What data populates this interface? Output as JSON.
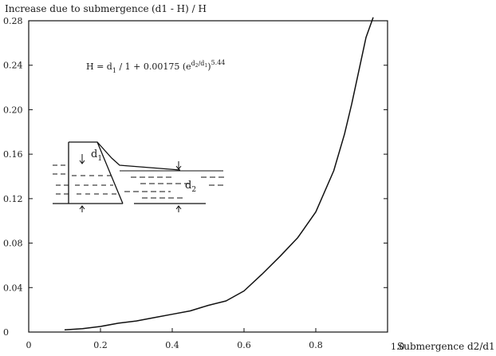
{
  "chart_data": {
    "type": "line",
    "title": "Increase due to submergence",
    "ylabel": "(d1 - H) / H",
    "xlabel": "Submergence d2/d1",
    "equation": {
      "lhs": "H = d",
      "mid": " / 1 + 0.00175 (e",
      "exp_pre": "d",
      "exp_sub_a": "2",
      "exp_slash": "/d",
      "exp_sub_b": "1",
      "close": ")",
      "power": "5.44",
      "sub1": "1"
    },
    "xlim": [
      0,
      1.0
    ],
    "ylim": [
      0,
      0.28
    ],
    "x_ticks": [
      {
        "v": 0,
        "label": "0"
      },
      {
        "v": 0.2,
        "label": "0.2"
      },
      {
        "v": 0.4,
        "label": "0.4"
      },
      {
        "v": 0.6,
        "label": "0.6"
      },
      {
        "v": 0.8,
        "label": "0.8"
      },
      {
        "v": 1.0,
        "label": "1.0"
      }
    ],
    "y_ticks": [
      {
        "v": 0,
        "label": "0"
      },
      {
        "v": 0.04,
        "label": "0.04"
      },
      {
        "v": 0.08,
        "label": "0.08"
      },
      {
        "v": 0.12,
        "label": "0.12"
      },
      {
        "v": 0.16,
        "label": "0.16"
      },
      {
        "v": 0.2,
        "label": "0.20"
      },
      {
        "v": 0.24,
        "label": "0.24"
      },
      {
        "v": 0.28,
        "label": "0.28"
      }
    ],
    "series": [
      {
        "x": [
          0.1,
          0.15,
          0.2,
          0.25,
          0.3,
          0.35,
          0.4,
          0.45,
          0.5,
          0.55,
          0.6,
          0.65,
          0.7,
          0.75,
          0.8,
          0.85,
          0.88,
          0.9,
          0.92,
          0.94,
          0.96
        ],
        "y": [
          0.002,
          0.003,
          0.005,
          0.008,
          0.01,
          0.013,
          0.016,
          0.019,
          0.024,
          0.028,
          0.037,
          0.052,
          0.068,
          0.085,
          0.108,
          0.145,
          0.178,
          0.205,
          0.235,
          0.265,
          0.283
        ]
      }
    ],
    "inset": {
      "label_upstream": "d",
      "label_upstream_sub": "1",
      "label_downstream": "d",
      "label_downstream_sub": "2"
    },
    "grid": false
  }
}
